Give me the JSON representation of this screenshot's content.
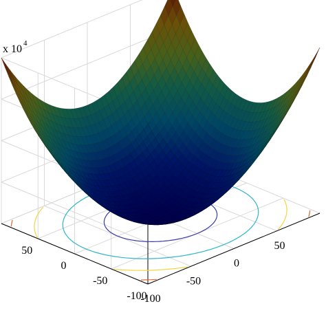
{
  "chart_data": {
    "type": "surface",
    "function": "z = x^2 + y^2",
    "x_ticks": [
      -100,
      -50,
      0,
      50
    ],
    "y_ticks": [
      -100,
      -50,
      0,
      50
    ],
    "xlim": [
      -100,
      100
    ],
    "ylim": [
      -100,
      100
    ],
    "zlim": [
      0,
      20000
    ],
    "z_multiplier": {
      "base": "x 10",
      "exponent": "4"
    },
    "grid": true,
    "colormap": "jet",
    "contour_levels": [
      2500,
      7500,
      12500,
      17500
    ],
    "contour_colors": [
      "#3a3aa8",
      "#2fb5c9",
      "#f2d541",
      "#e0662a"
    ]
  }
}
